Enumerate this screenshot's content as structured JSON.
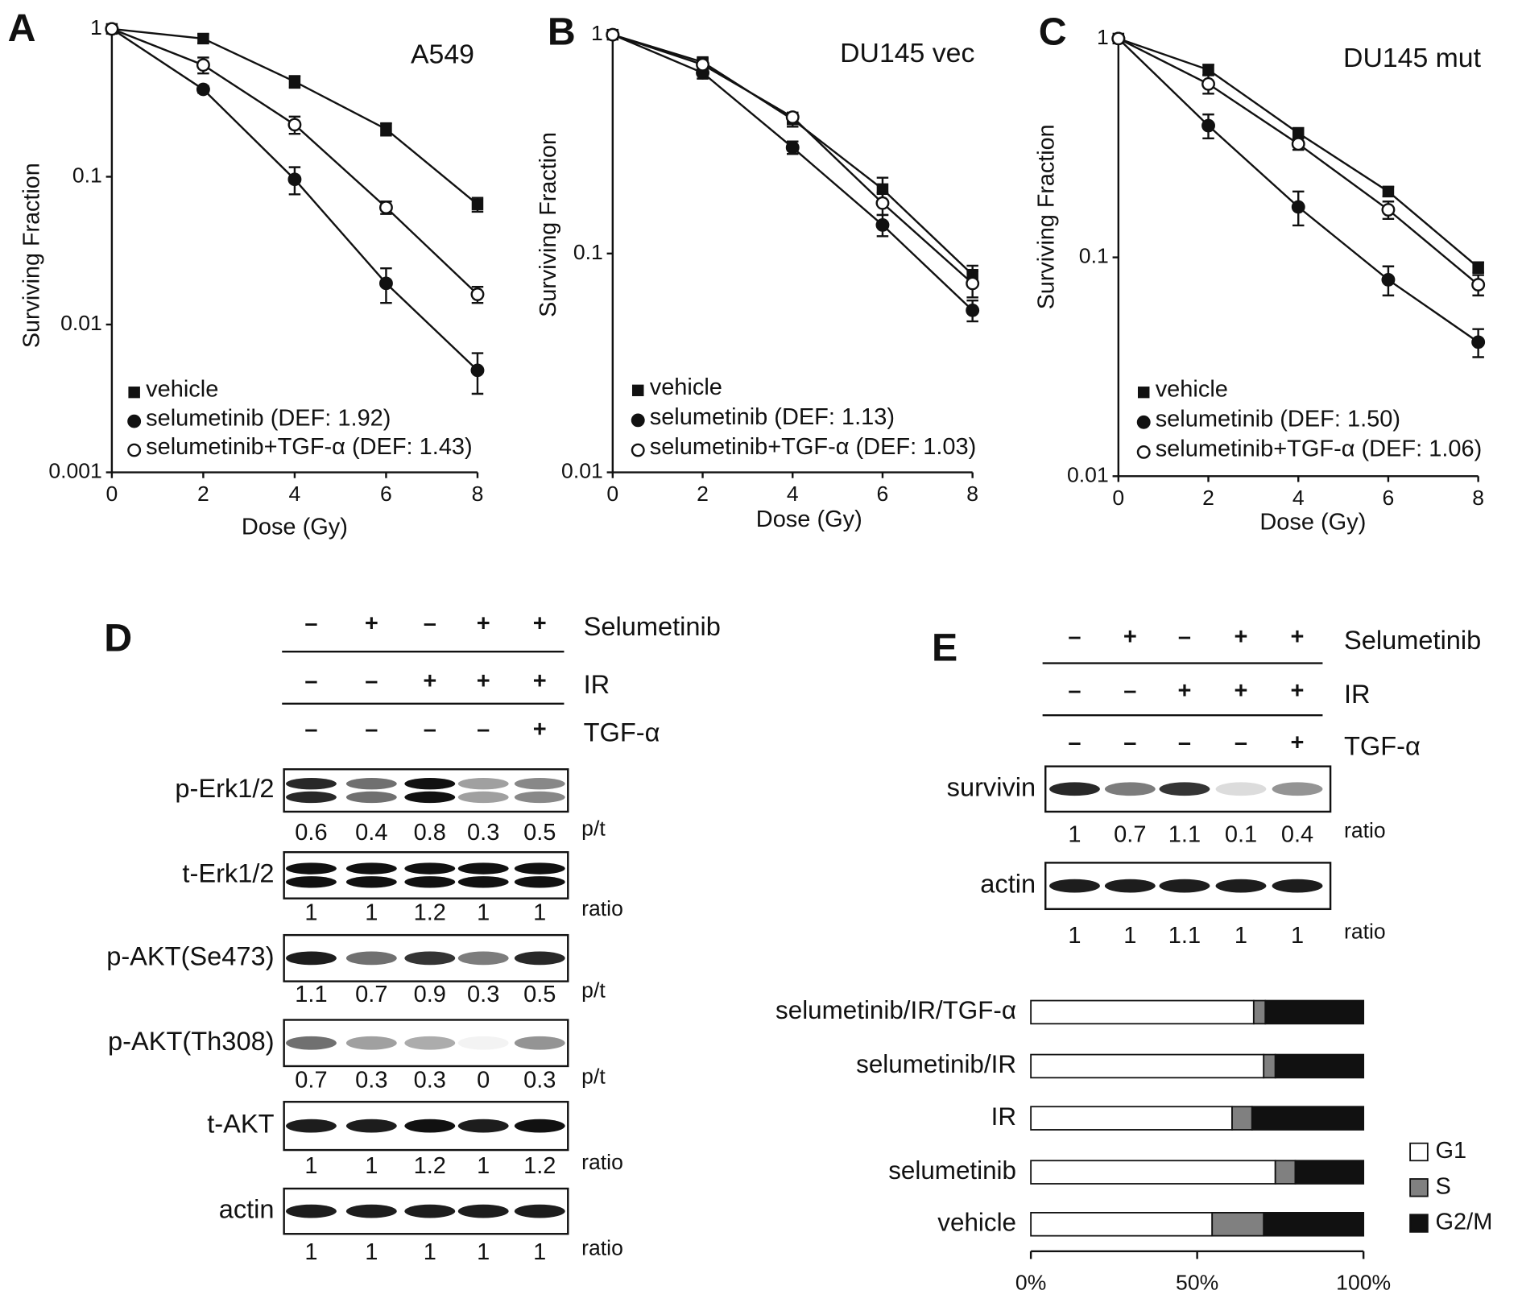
{
  "chart_data": [
    {
      "type": "line",
      "panel": "A",
      "title": "A549",
      "x_label": "Dose (Gy)",
      "y_label": "Surviving Fraction",
      "y_scale": "log",
      "x": [
        0,
        2,
        4,
        6,
        8
      ],
      "xlim": [
        0,
        8
      ],
      "xticks": [
        0,
        2,
        4,
        6,
        8
      ],
      "ylim": [
        0.001,
        1
      ],
      "yticks": [
        0.001,
        0.01,
        0.1,
        1
      ],
      "series": [
        {
          "name": "vehicle",
          "marker": "square",
          "color": "#111111",
          "values": [
            1,
            0.86,
            0.44,
            0.21,
            0.065
          ],
          "errors": [
            0,
            0.06,
            0.04,
            0.02,
            0.007
          ]
        },
        {
          "name": "selumetinib (DEF:  1.92)",
          "marker": "circle",
          "color": "#111111",
          "values": [
            1,
            0.39,
            0.096,
            0.019,
            0.0049
          ],
          "errors": [
            0,
            0.02,
            0.02,
            0.005,
            0.0015
          ]
        },
        {
          "name": "selumetinib+TGF-α (DEF:  1.43)",
          "marker": "circle-open",
          "color": "#111111",
          "values": [
            1,
            0.57,
            0.225,
            0.062,
            0.016
          ],
          "errors": [
            0,
            0.07,
            0.03,
            0.006,
            0.002
          ]
        }
      ]
    },
    {
      "type": "line",
      "panel": "B",
      "title": "DU145  vec",
      "x_label": "Dose (Gy)",
      "y_label": "Surviving Fraction",
      "y_scale": "log",
      "x": [
        0,
        2,
        4,
        6,
        8
      ],
      "xlim": [
        0,
        8
      ],
      "xticks": [
        0,
        2,
        4,
        6,
        8
      ],
      "ylim": [
        0.01,
        1
      ],
      "yticks": [
        0.01,
        0.1,
        1
      ],
      "series": [
        {
          "name": "vehicle",
          "marker": "square",
          "color": "#111111",
          "values": [
            1,
            0.75,
            0.41,
            0.197,
            0.08
          ],
          "errors": [
            0,
            0.03,
            0.03,
            0.025,
            0.008
          ]
        },
        {
          "name": "selumetinib (DEF:  1.13)",
          "marker": "circle",
          "color": "#111111",
          "values": [
            1,
            0.67,
            0.305,
            0.135,
            0.055
          ],
          "errors": [
            0,
            0.04,
            0.02,
            0.015,
            0.006
          ]
        },
        {
          "name": "selumetinib+TGF-α (DEF:  1.03)",
          "marker": "circle-open",
          "color": "#111111",
          "values": [
            1,
            0.73,
            0.42,
            0.17,
            0.073
          ],
          "errors": [
            0,
            0.03,
            0.02,
            0.02,
            0.01
          ]
        }
      ]
    },
    {
      "type": "line",
      "panel": "C",
      "title": "DU145  mut",
      "x_label": "Dose (Gy)",
      "y_label": "Surviving Fraction",
      "y_scale": "log",
      "x": [
        0,
        2,
        4,
        6,
        8
      ],
      "xlim": [
        0,
        8
      ],
      "xticks": [
        0,
        2,
        4,
        6,
        8
      ],
      "ylim": [
        0.01,
        1
      ],
      "yticks": [
        0.01,
        0.1,
        1
      ],
      "series": [
        {
          "name": "vehicle",
          "marker": "square",
          "color": "#111111",
          "values": [
            1,
            0.72,
            0.37,
            0.2,
            0.09
          ],
          "errors": [
            0,
            0.04,
            0.02,
            0.01,
            0.005
          ]
        },
        {
          "name": "selumetinib (DEF:  1.50)",
          "marker": "circle",
          "color": "#111111",
          "values": [
            1,
            0.4,
            0.17,
            0.079,
            0.041
          ],
          "errors": [
            0,
            0.05,
            0.03,
            0.012,
            0.006
          ]
        },
        {
          "name": "selumetinib+TGF-α (DEF:  1.06)",
          "marker": "circle-open",
          "color": "#111111",
          "values": [
            1,
            0.62,
            0.33,
            0.165,
            0.075
          ],
          "errors": [
            0,
            0.06,
            0.02,
            0.015,
            0.008
          ]
        }
      ]
    },
    {
      "type": "stacked-barh",
      "panel": "E",
      "categories": [
        "selumetinib/IR/TGF-α",
        "selumetinib/IR",
        "IR",
        "selumetinib",
        "vehicle"
      ],
      "xlim": [
        0,
        100
      ],
      "xticks": [
        {
          "value": 0,
          "label": "0%"
        },
        {
          "value": 50,
          "label": "50%"
        },
        {
          "value": 100,
          "label": "100%"
        }
      ],
      "series": [
        {
          "name": "G1",
          "color": "#ffffff",
          "values": [
            67,
            70,
            60.5,
            73.5,
            54.5
          ]
        },
        {
          "name": "S",
          "color": "#808080",
          "values": [
            3.5,
            3.5,
            6,
            6,
            15.5
          ]
        },
        {
          "name": "G2/M",
          "color": "#111111",
          "values": [
            29.5,
            26.5,
            33.5,
            20.5,
            30
          ]
        }
      ]
    }
  ],
  "blots": [
    {
      "panel": "D",
      "treatments": [
        {
          "name": "Selumetinib",
          "lanes": [
            "–",
            "+",
            "–",
            "+",
            "+"
          ]
        },
        {
          "name": "IR",
          "lanes": [
            "–",
            "–",
            "+",
            "+",
            "+"
          ]
        },
        {
          "name": "TGF-α",
          "lanes": [
            "–",
            "–",
            "–",
            "–",
            "+"
          ]
        }
      ],
      "rows": [
        {
          "label": "p-Erk1/2",
          "ratios": [
            0.6,
            0.4,
            0.8,
            0.3,
            0.5
          ],
          "unit": "p/t"
        },
        {
          "label": "t-Erk1/2",
          "ratios": [
            1,
            1,
            1.2,
            1,
            1
          ],
          "unit": "ratio"
        },
        {
          "label": "p-AKT(Se473)",
          "ratios": [
            1.1,
            0.7,
            0.9,
            0.3,
            0.5
          ],
          "unit": "p/t"
        },
        {
          "label": "p-AKT(Th308)",
          "ratios": [
            0.7,
            0.3,
            0.3,
            0,
            0.3
          ],
          "unit": "p/t"
        },
        {
          "label": "t-AKT",
          "ratios": [
            1,
            1,
            1.2,
            1,
            1.2
          ],
          "unit": "ratio"
        },
        {
          "label": "actin",
          "ratios": [
            1,
            1,
            1,
            1,
            1
          ],
          "unit": "ratio"
        }
      ]
    },
    {
      "panel": "E",
      "treatments": [
        {
          "name": "Selumetinib",
          "lanes": [
            "–",
            "+",
            "–",
            "+",
            "+"
          ]
        },
        {
          "name": "IR",
          "lanes": [
            "–",
            "–",
            "+",
            "+",
            "+"
          ]
        },
        {
          "name": "TGF-α",
          "lanes": [
            "–",
            "–",
            "–",
            "–",
            "+"
          ]
        }
      ],
      "rows": [
        {
          "label": "survivin",
          "ratios": [
            1,
            0.7,
            1.1,
            0.1,
            0.4
          ],
          "unit": "ratio"
        },
        {
          "label": "actin",
          "ratios": [
            1,
            1,
            1.1,
            1,
            1
          ],
          "unit": "ratio"
        }
      ]
    }
  ]
}
